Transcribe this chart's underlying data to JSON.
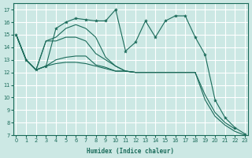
{
  "xlabel": "Humidex (Indice chaleur)",
  "bg_color": "#cce8e4",
  "grid_color": "#ffffff",
  "line_color": "#1a6b5a",
  "xlim": [
    -0.3,
    23.3
  ],
  "ylim": [
    7,
    17.5
  ],
  "yticks": [
    7,
    8,
    9,
    10,
    11,
    12,
    13,
    14,
    15,
    16,
    17
  ],
  "xticks": [
    0,
    1,
    2,
    3,
    4,
    5,
    6,
    7,
    8,
    9,
    10,
    11,
    12,
    13,
    14,
    15,
    16,
    17,
    18,
    19,
    20,
    21,
    22,
    23
  ],
  "series": [
    {
      "x": [
        0,
        1,
        2,
        3,
        4,
        5,
        6,
        7,
        8,
        9,
        10,
        11,
        12,
        13,
        14,
        15,
        16,
        17,
        18,
        19,
        20,
        21,
        22,
        23
      ],
      "y": [
        15,
        13,
        12.2,
        12.5,
        15.5,
        16.0,
        16.3,
        16.2,
        16.1,
        16.1,
        17.0,
        13.7,
        14.4,
        16.1,
        14.8,
        16.1,
        16.5,
        16.5,
        14.8,
        13.4,
        9.8,
        8.4,
        7.6,
        7.1
      ],
      "marker": true
    },
    {
      "x": [
        0,
        1,
        2,
        3,
        4,
        5,
        6,
        7,
        8,
        9,
        10,
        11,
        12,
        13,
        14,
        15,
        16,
        17,
        18,
        19,
        20,
        21,
        22,
        23
      ],
      "y": [
        15,
        13,
        12.2,
        12.5,
        12.7,
        12.8,
        12.8,
        12.7,
        12.5,
        12.3,
        12.1,
        12.1,
        12.0,
        12.0,
        12.0,
        12.0,
        12.0,
        12.0,
        12.0,
        9.8,
        8.5,
        7.8,
        7.3,
        7.0
      ],
      "marker": false
    },
    {
      "x": [
        0,
        1,
        2,
        3,
        4,
        5,
        6,
        7,
        8,
        9,
        10,
        11,
        12,
        13,
        14,
        15,
        16,
        17,
        18,
        19,
        20,
        21,
        22
      ],
      "y": [
        15,
        13,
        12.2,
        12.5,
        13.0,
        13.2,
        13.3,
        13.3,
        12.6,
        12.4,
        12.1,
        12.1,
        12.0,
        12.0,
        12.0,
        12.0,
        12.0,
        12.0,
        12.0,
        10.2,
        8.8,
        8.0,
        7.5
      ],
      "marker": false
    },
    {
      "x": [
        0,
        1,
        2,
        3,
        4,
        5,
        6,
        7,
        8,
        9,
        10,
        11,
        12,
        13,
        14,
        15,
        16,
        17,
        18
      ],
      "y": [
        15,
        13,
        12.2,
        14.5,
        14.5,
        14.8,
        14.8,
        14.5,
        13.5,
        13.0,
        12.5,
        12.1,
        12.0,
        12.0,
        12.0,
        12.0,
        12.0,
        12.0,
        12.0
      ],
      "marker": false
    },
    {
      "x": [
        0,
        1,
        2,
        3,
        4,
        5,
        6,
        7,
        8,
        9,
        10,
        11,
        12,
        13,
        14,
        15,
        16,
        17,
        18
      ],
      "y": [
        15,
        13,
        12.2,
        14.5,
        14.8,
        15.5,
        15.8,
        15.5,
        14.8,
        13.2,
        12.5,
        12.1,
        12.0,
        12.0,
        12.0,
        12.0,
        12.0,
        12.0,
        12.0
      ],
      "marker": false
    }
  ]
}
